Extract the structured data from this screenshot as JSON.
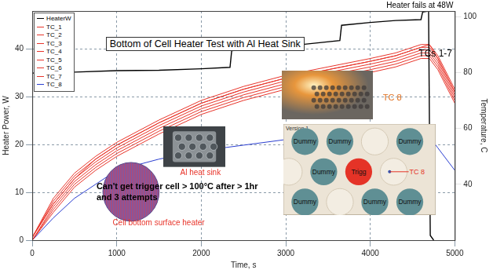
{
  "chart_data": {
    "type": "line",
    "title": "Bottom of Cell Heater Test with Al Heat Sink",
    "x_label": "Time, s",
    "y_label": "Heater Power, W",
    "y2_label": "Temperature, C",
    "xlim": [
      0,
      5000
    ],
    "xticks": [
      0,
      1000,
      2000,
      3000,
      4000,
      5000
    ],
    "ylim": [
      0,
      48
    ],
    "yticks": [
      0,
      10,
      20,
      30,
      40
    ],
    "y2lim": [
      20,
      102
    ],
    "y2ticks": [
      40,
      60,
      80,
      100
    ],
    "grid": true,
    "legend": "upper left",
    "series": [
      {
        "name": "HeaterW",
        "color": "#000000",
        "axis": "y",
        "x": [
          0,
          500,
          1000,
          1500,
          2000,
          2340,
          2360,
          2800,
          3200,
          3640,
          3660,
          4000,
          4300,
          4600,
          4620,
          4690,
          4710,
          4750
        ],
        "values": [
          35,
          35.2,
          35.5,
          35.6,
          35.9,
          36.2,
          39.7,
          40.3,
          41,
          41.8,
          45,
          45.6,
          46,
          46.2,
          47.8,
          48,
          1,
          0
        ]
      },
      {
        "name": "TC_1",
        "color": "#e8352b",
        "axis": "y2",
        "x": [
          0,
          250,
          500,
          750,
          1000,
          1500,
          2000,
          2500,
          3000,
          3500,
          4000,
          4300,
          4600,
          4700,
          4800,
          5000
        ],
        "values": [
          20,
          32,
          41,
          47,
          52,
          60,
          67,
          72,
          76,
          79,
          82,
          84,
          87,
          87,
          83,
          71
        ]
      },
      {
        "name": "TC_2",
        "color": "#e8352b",
        "axis": "y2",
        "x": [
          0,
          250,
          500,
          750,
          1000,
          1500,
          2000,
          2500,
          3000,
          3500,
          4000,
          4300,
          4600,
          4700,
          4800,
          5000
        ],
        "values": [
          21,
          33,
          42,
          48,
          53,
          61,
          68,
          73,
          77,
          80,
          83,
          85,
          88,
          88,
          84,
          72
        ]
      },
      {
        "name": "TC_3",
        "color": "#e8352b",
        "axis": "y2",
        "x": [
          0,
          250,
          500,
          750,
          1000,
          1500,
          2000,
          2500,
          3000,
          3500,
          4000,
          4300,
          4600,
          4700,
          4800,
          5000
        ],
        "values": [
          21,
          34,
          43,
          49,
          54,
          62,
          69,
          74,
          78,
          81,
          84,
          86,
          89,
          89,
          85,
          73
        ]
      },
      {
        "name": "TC_4",
        "color": "#e8352b",
        "axis": "y2",
        "x": [
          0,
          250,
          500,
          750,
          1000,
          1500,
          2000,
          2500,
          3000,
          3500,
          4000,
          4300,
          4600,
          4700,
          4800,
          5000
        ],
        "values": [
          20,
          31,
          40,
          46,
          51,
          59,
          66,
          71,
          75,
          78,
          81,
          83,
          86,
          86,
          82,
          70
        ]
      },
      {
        "name": "TC_5",
        "color": "#e8352b",
        "axis": "y2",
        "x": [
          0,
          250,
          500,
          750,
          1000,
          1500,
          2000,
          2500,
          3000,
          3500,
          4000,
          4300,
          4600,
          4700,
          4800,
          5000
        ],
        "values": [
          21,
          35,
          44,
          50,
          55,
          63,
          70,
          75,
          79,
          82,
          85,
          87,
          90,
          90,
          86,
          74
        ]
      },
      {
        "name": "TC_6",
        "color": "#e8352b",
        "axis": "y2",
        "x": [
          0,
          250,
          500,
          750,
          1000,
          1500,
          2000,
          2500,
          3000,
          3500,
          4000,
          4300,
          4600,
          4700,
          4800,
          5000
        ],
        "values": [
          20,
          30,
          39,
          45,
          50,
          58,
          65,
          70,
          74,
          77,
          80,
          82,
          85,
          85,
          81,
          69
        ]
      },
      {
        "name": "TC_7",
        "color": "#e8352b",
        "axis": "y2",
        "x": [
          0,
          250,
          500,
          750,
          1000,
          1500,
          2000,
          2500,
          3000,
          3500,
          4000,
          4300,
          4600,
          4700,
          4800,
          5000
        ],
        "values": [
          21,
          33,
          42,
          49,
          54,
          62,
          69,
          74,
          78,
          81,
          84,
          86,
          89,
          90,
          85,
          73
        ]
      },
      {
        "name": "TC_8",
        "color": "#2b3fd0",
        "axis": "y2",
        "x": [
          0,
          250,
          500,
          750,
          1000,
          1500,
          2000,
          2500,
          3000,
          3500,
          4000,
          4300,
          4600,
          4700,
          4800,
          5000
        ],
        "values": [
          20,
          28,
          35,
          40,
          45,
          49,
          52,
          54,
          56,
          57,
          58,
          58,
          58,
          57,
          53,
          45
        ]
      }
    ],
    "annotations": [
      {
        "text": "Heater fails at 48W",
        "color": "#000000"
      },
      {
        "text": "TCs 1-7",
        "color": "#000000"
      },
      {
        "text": "TC 8",
        "color": "#e07020"
      },
      {
        "text": "Cell bottom surface heater",
        "color": "#e8352b"
      },
      {
        "text": "Al heat sink",
        "color": "#e8352b"
      },
      {
        "text": "Can't get trigger cell > 100°C after > 1hr and 3 attempts",
        "color": "#000000"
      }
    ]
  },
  "diagram": {
    "title": "Version 1",
    "rows": [
      [
        {
          "label": "Dummy",
          "color": "#5f8f94"
        },
        {
          "label": "Dummy",
          "color": "#5f8f94"
        },
        null,
        {
          "label": "Dummy",
          "color": "#5f8f94"
        }
      ],
      [
        null,
        {
          "label": "Dummy",
          "color": "#5f8f94"
        },
        {
          "label": "Trigg",
          "color": "#e53327"
        },
        null
      ],
      [
        {
          "label": "Dummy",
          "color": "#5f8f94"
        },
        null,
        {
          "label": "Dummy",
          "color": "#5f8f94"
        },
        {
          "label": "Dummy",
          "color": "#5f8f94"
        }
      ]
    ],
    "tc_label": "TC 8"
  }
}
